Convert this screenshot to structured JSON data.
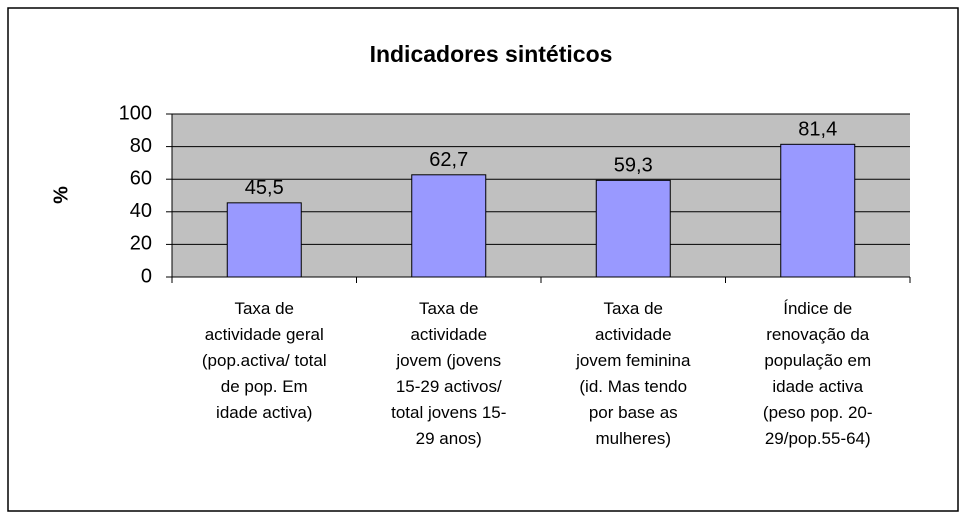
{
  "chart_data": {
    "type": "bar",
    "title": "Indicadores sintéticos",
    "y_label": "%",
    "categories": [
      "Taxa de\nactividade geral\n(pop.activa/ total\nde pop. Em\nidade activa)",
      "Taxa de\nactividade\njovem (jovens\n15-29 activos/\ntotal jovens 15-\n29 anos)",
      "Taxa de\nactividade\njovem feminina\n(id. Mas tendo\npor base as\nmulheres)",
      "Índice de\nrenovação da\npopulação em\nidade activa\n(peso pop. 20-\n29/pop.55-64)"
    ],
    "values": [
      45.5,
      62.7,
      59.3,
      81.4
    ],
    "value_labels": [
      "45,5",
      "62,7",
      "59,3",
      "81,4"
    ],
    "color": "#9999ff",
    "ylim": [
      0,
      100
    ],
    "yticks": [
      0,
      20,
      40,
      60,
      80,
      100
    ],
    "grid": true
  }
}
